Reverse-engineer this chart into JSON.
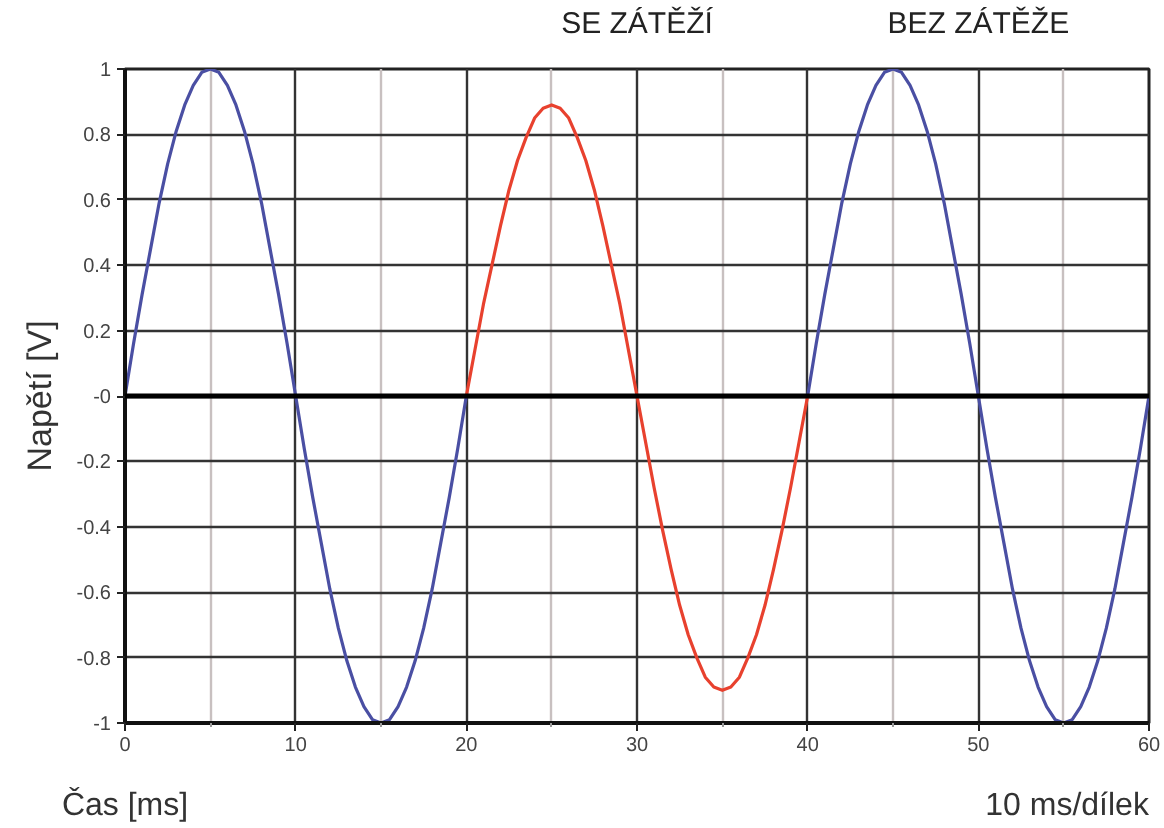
{
  "chart_data": {
    "type": "line",
    "xlabel": "Čas [ms]",
    "ylabel": "Napětí [V]",
    "annotations": [
      "10 ms/dílek"
    ],
    "xlim": [
      0,
      60
    ],
    "ylim": [
      -1,
      1
    ],
    "xticks": [
      0,
      {
        "value": 5,
        "label": null
      },
      10,
      {
        "value": 15,
        "label": null
      },
      20,
      {
        "value": 25,
        "label": null
      },
      30,
      {
        "value": 35,
        "label": null
      },
      40,
      {
        "value": 45,
        "label": null
      },
      50,
      {
        "value": 55,
        "label": null
      },
      60
    ],
    "yticks": [
      -1,
      -0.8,
      -0.6,
      -0.4,
      -0.2,
      {
        "value": 0,
        "label": "-0"
      },
      0.2,
      0.4,
      0.6,
      0.8,
      1
    ],
    "grid": true,
    "ref_lines": [
      {
        "axis": "y",
        "value": 0,
        "color": "#000000"
      }
    ],
    "series": [
      {
        "color": "#4a4fa3",
        "x": [
          0,
          0.5,
          1,
          1.5,
          2,
          2.5,
          3,
          3.5,
          4,
          4.5,
          5,
          5.5,
          6,
          6.5,
          7,
          7.5,
          8,
          8.5,
          9,
          9.5,
          10,
          10.5,
          11,
          11.5,
          12,
          12.5,
          13,
          13.5,
          14,
          14.5,
          15,
          15.5,
          16,
          16.5,
          17,
          17.5,
          18,
          18.5,
          19,
          19.5,
          20
        ],
        "values": [
          0,
          0.16,
          0.31,
          0.45,
          0.59,
          0.71,
          0.81,
          0.89,
          0.95,
          0.99,
          1,
          0.99,
          0.95,
          0.89,
          0.81,
          0.71,
          0.59,
          0.45,
          0.31,
          0.16,
          0,
          -0.16,
          -0.31,
          -0.45,
          -0.59,
          -0.71,
          -0.81,
          -0.89,
          -0.95,
          -0.99,
          -1,
          -0.99,
          -0.95,
          -0.89,
          -0.81,
          -0.71,
          -0.59,
          -0.45,
          -0.31,
          -0.16,
          0
        ]
      },
      {
        "name": "SE ZÁTĚŽÍ",
        "color": "#e8412e",
        "x": [
          20,
          20.5,
          21,
          21.5,
          22,
          22.5,
          23,
          23.5,
          24,
          24.5,
          25,
          25.5,
          26,
          26.5,
          27,
          27.5,
          28,
          28.5,
          29,
          29.5,
          30,
          30.5,
          31,
          31.5,
          32,
          32.5,
          33,
          33.5,
          34,
          34.5,
          35,
          35.5,
          36,
          36.5,
          37,
          37.5,
          38,
          38.5,
          39,
          39.5,
          40
        ],
        "values": [
          0,
          0.14,
          0.28,
          0.4,
          0.52,
          0.63,
          0.72,
          0.79,
          0.85,
          0.88,
          0.89,
          0.88,
          0.85,
          0.79,
          0.72,
          0.63,
          0.52,
          0.4,
          0.28,
          0.14,
          0,
          -0.14,
          -0.28,
          -0.41,
          -0.53,
          -0.64,
          -0.73,
          -0.8,
          -0.86,
          -0.89,
          -0.9,
          -0.89,
          -0.86,
          -0.8,
          -0.73,
          -0.64,
          -0.53,
          -0.41,
          -0.28,
          -0.14,
          0
        ]
      },
      {
        "name": "BEZ ZÁTĚŽE",
        "color": "#4a4fa3",
        "x": [
          40,
          40.5,
          41,
          41.5,
          42,
          42.5,
          43,
          43.5,
          44,
          44.5,
          45,
          45.5,
          46,
          46.5,
          47,
          47.5,
          48,
          48.5,
          49,
          49.5,
          50,
          50.5,
          51,
          51.5,
          52,
          52.5,
          53,
          53.5,
          54,
          54.5,
          55,
          55.5,
          56,
          56.5,
          57,
          57.5,
          58,
          58.5,
          59,
          59.5,
          60
        ],
        "values": [
          0,
          0.16,
          0.31,
          0.45,
          0.59,
          0.71,
          0.81,
          0.89,
          0.95,
          0.99,
          1,
          0.99,
          0.95,
          0.89,
          0.81,
          0.71,
          0.59,
          0.45,
          0.31,
          0.16,
          0,
          -0.16,
          -0.31,
          -0.45,
          -0.59,
          -0.71,
          -0.81,
          -0.89,
          -0.95,
          -0.99,
          -1,
          -0.99,
          -0.95,
          -0.89,
          -0.81,
          -0.71,
          -0.59,
          -0.45,
          -0.31,
          -0.16,
          0
        ]
      }
    ]
  }
}
